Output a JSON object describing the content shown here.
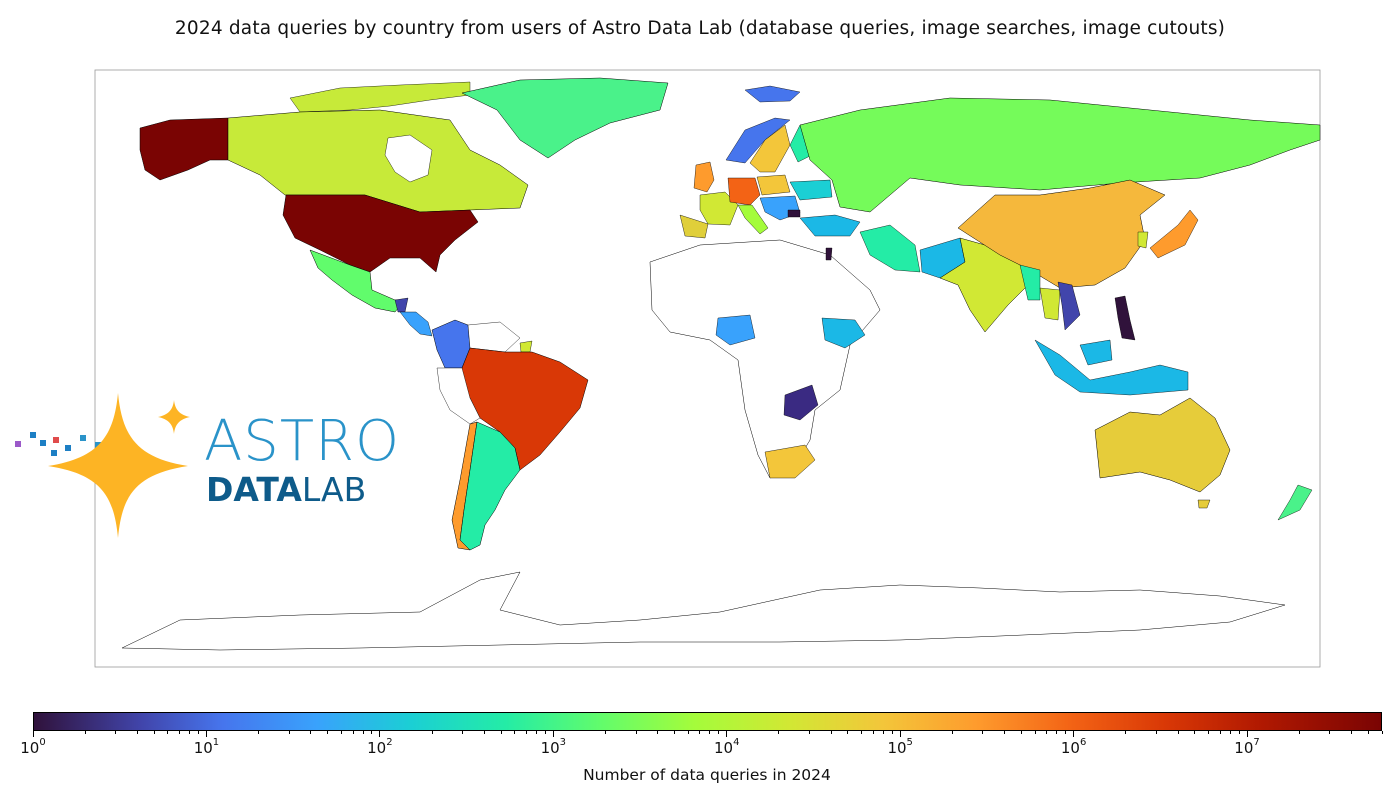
{
  "figure": {
    "title": "2024 data queries by country from users of Astro Data Lab (database queries, image searches, image cutouts)"
  },
  "logo": {
    "line1": "ASTRO",
    "line2_bold": "DATA",
    "line2_regular": "LAB"
  },
  "colorbar": {
    "label": "Number of data queries in 2024",
    "scale": "log",
    "colormap": "turbo",
    "range": [
      1,
      60000000
    ],
    "tick_labels": [
      {
        "base": "10",
        "exp": "0"
      },
      {
        "base": "10",
        "exp": "1"
      },
      {
        "base": "10",
        "exp": "2"
      },
      {
        "base": "10",
        "exp": "3"
      },
      {
        "base": "10",
        "exp": "4"
      },
      {
        "base": "10",
        "exp": "5"
      },
      {
        "base": "10",
        "exp": "6"
      },
      {
        "base": "10",
        "exp": "7"
      }
    ]
  },
  "chart_data": {
    "type": "heatmap",
    "title": "2024 data queries by country from users of Astro Data Lab (database queries, image searches, image cutouts)",
    "value_label": "Number of data queries in 2024",
    "scale": "log",
    "range": [
      1,
      60000000
    ],
    "legend_position": "bottom",
    "countries": [
      {
        "name": "United States",
        "value": 40000000
      },
      {
        "name": "Alaska (US)",
        "value": 40000000
      },
      {
        "name": "Canada",
        "value": 20000
      },
      {
        "name": "Greenland",
        "value": 2000
      },
      {
        "name": "Mexico",
        "value": 5000
      },
      {
        "name": "Colombia",
        "value": 15
      },
      {
        "name": "Brazil",
        "value": 1500000
      },
      {
        "name": "Chile",
        "value": 400000
      },
      {
        "name": "Argentina",
        "value": 1000
      },
      {
        "name": "Germany",
        "value": 1000000
      },
      {
        "name": "United Kingdom",
        "value": 300000
      },
      {
        "name": "France",
        "value": 20000
      },
      {
        "name": "Spain",
        "value": 30000
      },
      {
        "name": "Italy",
        "value": 10000
      },
      {
        "name": "Poland",
        "value": 100000
      },
      {
        "name": "Sweden",
        "value": 200000
      },
      {
        "name": "Norway",
        "value": 15
      },
      {
        "name": "Finland",
        "value": 300
      },
      {
        "name": "Russia",
        "value": 6000
      },
      {
        "name": "Turkey",
        "value": 100
      },
      {
        "name": "Iran",
        "value": 1000
      },
      {
        "name": "India",
        "value": 30000
      },
      {
        "name": "China",
        "value": 200000
      },
      {
        "name": "Japan",
        "value": 300000
      },
      {
        "name": "South Korea",
        "value": 30000
      },
      {
        "name": "Thailand",
        "value": 20000
      },
      {
        "name": "Vietnam",
        "value": 10
      },
      {
        "name": "Philippines",
        "value": 1
      },
      {
        "name": "Indonesia",
        "value": 100
      },
      {
        "name": "Malaysia",
        "value": 100
      },
      {
        "name": "Australia",
        "value": 40000
      },
      {
        "name": "New Zealand",
        "value": 3000
      },
      {
        "name": "South Africa",
        "value": 100000
      },
      {
        "name": "Nigeria",
        "value": 30
      },
      {
        "name": "Ethiopia",
        "value": 100
      },
      {
        "name": "Zambia",
        "value": 2
      },
      {
        "name": "Israel",
        "value": 1
      }
    ]
  }
}
